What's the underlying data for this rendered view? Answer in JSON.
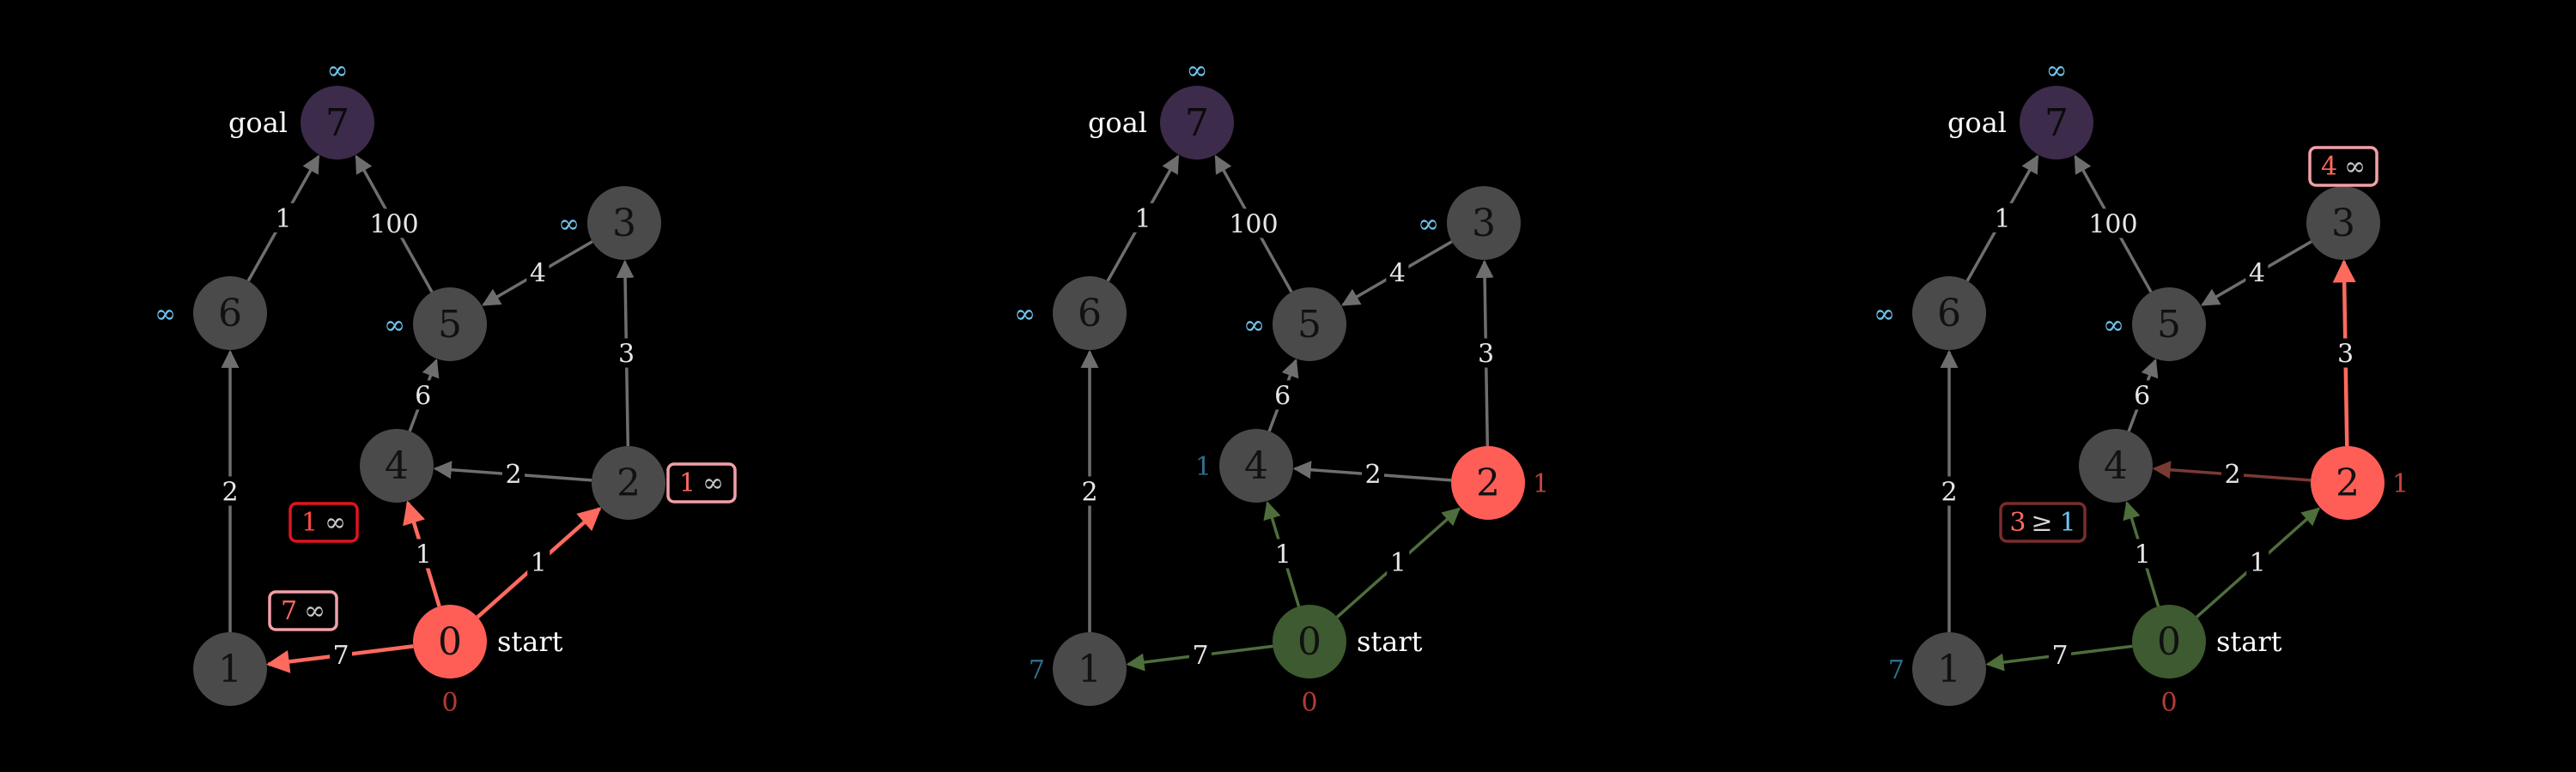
{
  "colors": {
    "background": "#000000",
    "node_default": "#4a4a4a",
    "node_goal": "#3c2b4a",
    "node_active": "#ff5e57",
    "node_done": "#3e5a30",
    "edge_default": "#6e6e6e",
    "edge_active": "#ff6a5e",
    "edge_done": "#4e6e3c",
    "edge_dim": "#7a3a34",
    "dist_inf": "#6ec6f0",
    "dist_start": "#b43a32",
    "dist_known_blue": "#2f6f8f",
    "dist_known_red": "#c0443a",
    "box_bright": "#f2a0a8",
    "box_red": "#e0141e",
    "box_dim": "#7a2c2c"
  },
  "panels": [
    {
      "nodes": [
        {
          "label": "7",
          "state": "goal"
        },
        {
          "label": "6",
          "state": "default"
        },
        {
          "label": "3",
          "state": "default"
        },
        {
          "label": "5",
          "state": "default"
        },
        {
          "label": "4",
          "state": "default"
        },
        {
          "label": "2",
          "state": "default"
        },
        {
          "label": "1",
          "state": "default"
        },
        {
          "label": "0",
          "state": "active"
        }
      ],
      "dist": [
        "∞",
        "∞",
        "∞",
        "∞",
        "",
        "",
        "",
        "0"
      ],
      "edges": [
        {
          "from": "6",
          "to": "7",
          "weight": "1",
          "state": "default"
        },
        {
          "from": "5",
          "to": "7",
          "weight": "100",
          "state": "default"
        },
        {
          "from": "3",
          "to": "5",
          "weight": "4",
          "state": "default"
        },
        {
          "from": "4",
          "to": "5",
          "weight": "6",
          "state": "default"
        },
        {
          "from": "2",
          "to": "3",
          "weight": "3",
          "state": "default"
        },
        {
          "from": "2",
          "to": "4",
          "weight": "2",
          "state": "default"
        },
        {
          "from": "1",
          "to": "6",
          "weight": "2",
          "state": "default"
        },
        {
          "from": "0",
          "to": "4",
          "weight": "1",
          "state": "active"
        },
        {
          "from": "0",
          "to": "2",
          "weight": "1",
          "state": "active"
        },
        {
          "from": "0",
          "to": "1",
          "weight": "7",
          "state": "active"
        }
      ],
      "boxes": [
        {
          "near": "2",
          "new": "1",
          "op": "",
          "old": "∞",
          "style": "bright"
        },
        {
          "near": "4",
          "new": "1",
          "op": "",
          "old": "∞",
          "style": "red"
        },
        {
          "near": "1",
          "new": "7",
          "op": "",
          "old": "∞",
          "style": "bright"
        }
      ]
    },
    {
      "nodes": [
        {
          "label": "7",
          "state": "goal"
        },
        {
          "label": "6",
          "state": "default"
        },
        {
          "label": "3",
          "state": "default"
        },
        {
          "label": "5",
          "state": "default"
        },
        {
          "label": "4",
          "state": "default"
        },
        {
          "label": "2",
          "state": "active"
        },
        {
          "label": "1",
          "state": "default"
        },
        {
          "label": "0",
          "state": "done"
        }
      ],
      "dist": [
        "∞",
        "∞",
        "∞",
        "∞",
        "1",
        "1",
        "7",
        "0"
      ],
      "edges": [
        {
          "from": "6",
          "to": "7",
          "weight": "1",
          "state": "default"
        },
        {
          "from": "5",
          "to": "7",
          "weight": "100",
          "state": "default"
        },
        {
          "from": "3",
          "to": "5",
          "weight": "4",
          "state": "default"
        },
        {
          "from": "4",
          "to": "5",
          "weight": "6",
          "state": "default"
        },
        {
          "from": "2",
          "to": "3",
          "weight": "3",
          "state": "default"
        },
        {
          "from": "2",
          "to": "4",
          "weight": "2",
          "state": "default"
        },
        {
          "from": "1",
          "to": "6",
          "weight": "2",
          "state": "default"
        },
        {
          "from": "0",
          "to": "4",
          "weight": "1",
          "state": "done"
        },
        {
          "from": "0",
          "to": "2",
          "weight": "1",
          "state": "done"
        },
        {
          "from": "0",
          "to": "1",
          "weight": "7",
          "state": "done"
        }
      ],
      "boxes": []
    },
    {
      "nodes": [
        {
          "label": "7",
          "state": "goal"
        },
        {
          "label": "6",
          "state": "default"
        },
        {
          "label": "3",
          "state": "default"
        },
        {
          "label": "5",
          "state": "default"
        },
        {
          "label": "4",
          "state": "default"
        },
        {
          "label": "2",
          "state": "active"
        },
        {
          "label": "1",
          "state": "default"
        },
        {
          "label": "0",
          "state": "done"
        }
      ],
      "dist": [
        "∞",
        "∞",
        "",
        "∞",
        "",
        "1",
        "7",
        "0"
      ],
      "edges": [
        {
          "from": "6",
          "to": "7",
          "weight": "1",
          "state": "default"
        },
        {
          "from": "5",
          "to": "7",
          "weight": "100",
          "state": "default"
        },
        {
          "from": "3",
          "to": "5",
          "weight": "4",
          "state": "default"
        },
        {
          "from": "4",
          "to": "5",
          "weight": "6",
          "state": "default"
        },
        {
          "from": "2",
          "to": "3",
          "weight": "3",
          "state": "active"
        },
        {
          "from": "2",
          "to": "4",
          "weight": "2",
          "state": "dim"
        },
        {
          "from": "1",
          "to": "6",
          "weight": "2",
          "state": "default"
        },
        {
          "from": "0",
          "to": "4",
          "weight": "1",
          "state": "done"
        },
        {
          "from": "0",
          "to": "2",
          "weight": "1",
          "state": "done"
        },
        {
          "from": "0",
          "to": "1",
          "weight": "7",
          "state": "done"
        }
      ],
      "boxes": [
        {
          "near": "3",
          "new": "4",
          "op": "",
          "old": "∞",
          "style": "bright"
        },
        {
          "near": "4",
          "new": "3",
          "op": "≥",
          "old": "1",
          "style": "dim"
        }
      ]
    }
  ],
  "labels": {
    "goal": "goal",
    "start": "start"
  }
}
